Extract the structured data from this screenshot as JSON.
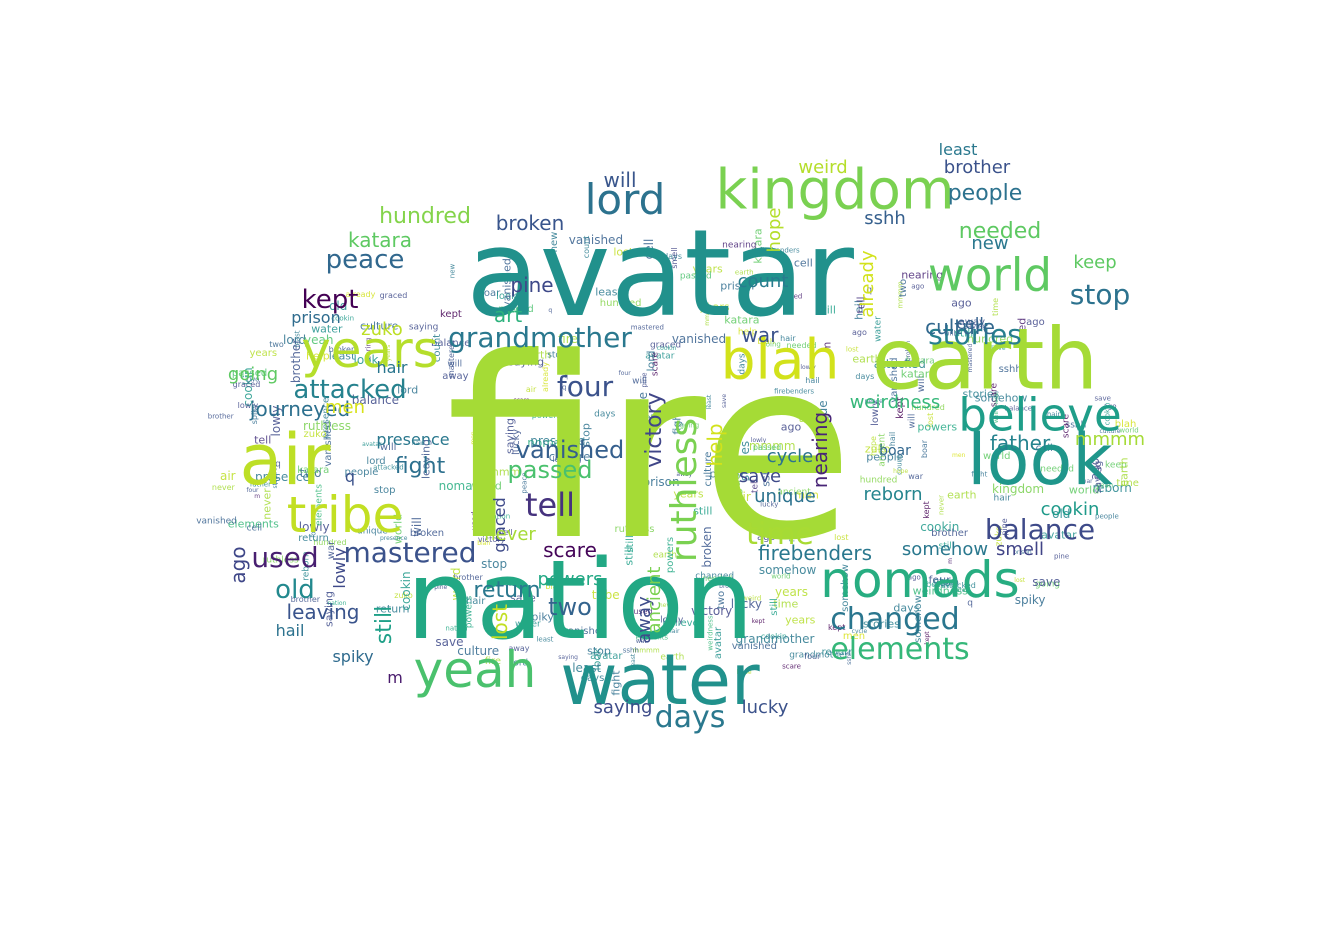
{
  "words": [
    {
      "text": "fire",
      "color": "#a5db36"
    },
    {
      "text": "avatar",
      "color": "#21918c"
    },
    {
      "text": "nation",
      "color": "#22a884"
    },
    {
      "text": "earth",
      "color": "#a5db36"
    },
    {
      "text": "air",
      "color": "#bddf26"
    },
    {
      "text": "look",
      "color": "#1f968b"
    },
    {
      "text": "water",
      "color": "#21918c"
    },
    {
      "text": "blah",
      "color": "#d2e21b"
    },
    {
      "text": "kingdom",
      "color": "#7ad151"
    },
    {
      "text": "years",
      "color": "#b5de2b"
    },
    {
      "text": "world",
      "color": "#5ec962"
    },
    {
      "text": "tribe",
      "color": "#c2df23"
    },
    {
      "text": "yeah",
      "color": "#4ac16d"
    },
    {
      "text": "believe",
      "color": "#1f9e89"
    },
    {
      "text": "nomads",
      "color": "#27ad81"
    },
    {
      "text": "grandmother",
      "color": "#2a788e"
    },
    {
      "text": "lord",
      "color": "#2c728e"
    },
    {
      "text": "elements",
      "color": "#35b779"
    },
    {
      "text": "changed",
      "color": "#2a768e"
    },
    {
      "text": "mastered",
      "color": "#3b528b"
    },
    {
      "text": "stories",
      "color": "#277f8e"
    },
    {
      "text": "tell",
      "color": "#46337e"
    },
    {
      "text": "kept",
      "color": "#440154"
    },
    {
      "text": "peace",
      "color": "#31688e"
    },
    {
      "text": "attacked",
      "color": "#26828e"
    },
    {
      "text": "stop",
      "color": "#2c728e"
    },
    {
      "text": "balance",
      "color": "#3e4a89"
    },
    {
      "text": "used",
      "color": "#481f70"
    },
    {
      "text": "hundred",
      "color": "#84d44b"
    },
    {
      "text": "ruthless",
      "color": "#7ad151"
    },
    {
      "text": "victory",
      "color": "#404688"
    },
    {
      "text": "four",
      "color": "#3b528b"
    },
    {
      "text": "passed",
      "color": "#4ac16d"
    },
    {
      "text": "vanished",
      "color": "#355f8d"
    },
    {
      "text": "days",
      "color": "#2a788e"
    },
    {
      "text": "two",
      "color": "#33638d"
    },
    {
      "text": "time",
      "color": "#a8db34"
    },
    {
      "text": "katara",
      "color": "#5ec962"
    },
    {
      "text": "people",
      "color": "#2c728e"
    },
    {
      "text": "needed",
      "color": "#5ec962"
    },
    {
      "text": "brother",
      "color": "#3b528b"
    },
    {
      "text": "firebenders",
      "color": "#2a788e"
    },
    {
      "text": "weirdness",
      "color": "#35b779"
    },
    {
      "text": "cookin",
      "color": "#1f9a8a"
    },
    {
      "text": "journeyed",
      "color": "#2d708e"
    },
    {
      "text": "father",
      "color": "#25838e"
    },
    {
      "text": "leaving",
      "color": "#3a548c"
    },
    {
      "text": "culture",
      "color": "#31688e"
    },
    {
      "text": "old",
      "color": "#23898e"
    },
    {
      "text": "going",
      "color": "#5ec962"
    },
    {
      "text": "fight",
      "color": "#2d708e"
    },
    {
      "text": "lucky",
      "color": "#3b528b"
    },
    {
      "text": "zuko",
      "color": "#bddf26"
    },
    {
      "text": "weird",
      "color": "#b5de2b"
    },
    {
      "text": "mmmm",
      "color": "#a5db36"
    },
    {
      "text": "smell",
      "color": "#414487"
    },
    {
      "text": "return",
      "color": "#2a788e"
    },
    {
      "text": "broken",
      "color": "#39558c"
    },
    {
      "text": "scare",
      "color": "#450559"
    },
    {
      "text": "hope",
      "color": "#b5de2b"
    },
    {
      "text": "will",
      "color": "#39568c"
    },
    {
      "text": "lost",
      "color": "#c2df23"
    },
    {
      "text": "somehow",
      "color": "#2a788e"
    },
    {
      "text": "ago",
      "color": "#3f4788"
    },
    {
      "text": "sshh",
      "color": "#355f8d"
    },
    {
      "text": "keep",
      "color": "#5ec962"
    },
    {
      "text": "reborn",
      "color": "#25858e"
    },
    {
      "text": "count",
      "color": "#287c8e"
    },
    {
      "text": "hair",
      "color": "#2a768e"
    },
    {
      "text": "art",
      "color": "#2db27d"
    },
    {
      "text": "already",
      "color": "#d2e21b"
    },
    {
      "text": "graced",
      "color": "#3e4a89"
    },
    {
      "text": "unique",
      "color": "#2c728e"
    },
    {
      "text": "men",
      "color": "#d8e219"
    },
    {
      "text": "nearing",
      "color": "#482576"
    },
    {
      "text": "saying",
      "color": "#3e4c8a"
    },
    {
      "text": "cycle",
      "color": "#2c738e"
    },
    {
      "text": "save",
      "color": "#3e4a89"
    },
    {
      "text": "prison",
      "color": "#2f6c8e"
    },
    {
      "text": "war",
      "color": "#3b528b"
    },
    {
      "text": "spiky",
      "color": "#2f6b8e"
    },
    {
      "text": "boar",
      "color": "#31668e"
    },
    {
      "text": "away",
      "color": "#3e4c8a"
    },
    {
      "text": "pine",
      "color": "#3e4989"
    },
    {
      "text": "ancient",
      "color": "#7ad151"
    },
    {
      "text": "powers",
      "color": "#22a884"
    },
    {
      "text": "presence",
      "color": "#2a788e"
    },
    {
      "text": "least",
      "color": "#2a788e"
    },
    {
      "text": "still",
      "color": "#1fa088"
    },
    {
      "text": "hail",
      "color": "#2c728e"
    },
    {
      "text": "never",
      "color": "#a5db36"
    },
    {
      "text": "help",
      "color": "#d2e21b"
    },
    {
      "text": "q",
      "color": "#3b528b"
    },
    {
      "text": "m",
      "color": "#481a6c"
    },
    {
      "text": "lowly",
      "color": "#3e4989"
    },
    {
      "text": "new",
      "color": "#2a788e"
    },
    {
      "text": "cell",
      "color": "#34618d"
    }
  ]
}
